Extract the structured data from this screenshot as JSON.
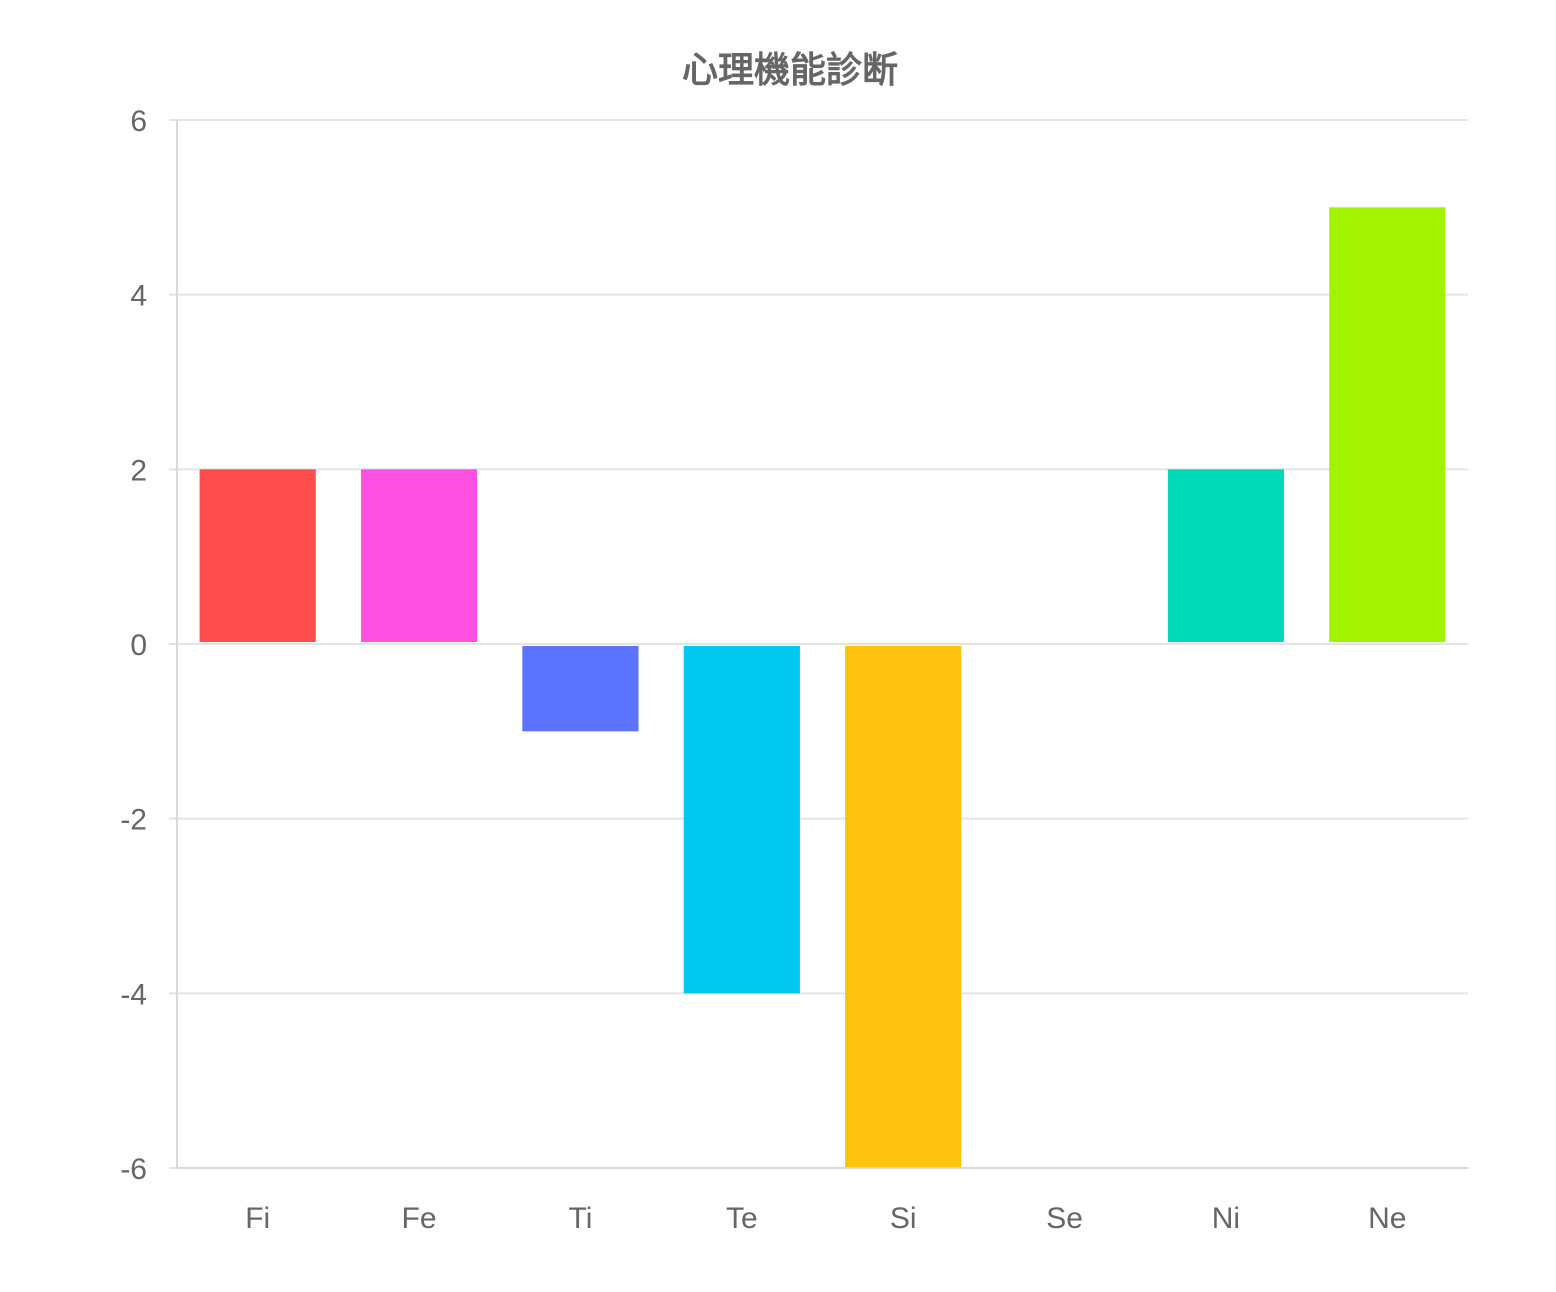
{
  "chart_data": {
    "type": "bar",
    "title": "心理機能診断",
    "xlabel": "",
    "ylabel": "",
    "categories": [
      "Fi",
      "Fe",
      "Ti",
      "Te",
      "Si",
      "Se",
      "Ni",
      "Ne"
    ],
    "values": [
      2,
      2,
      -1,
      -4,
      -6,
      0,
      2,
      5
    ],
    "colors": [
      "#ff4d4d",
      "#ff4fe0",
      "#5b73ff",
      "#00c8f0",
      "#ffc30f",
      "#ffffff",
      "#00d9b5",
      "#a3f200"
    ],
    "ylim": [
      -6,
      6
    ],
    "yticks": [
      "6",
      "4",
      "2",
      "0",
      "-2",
      "-4",
      "-6"
    ],
    "grid": true,
    "legend": "none"
  }
}
